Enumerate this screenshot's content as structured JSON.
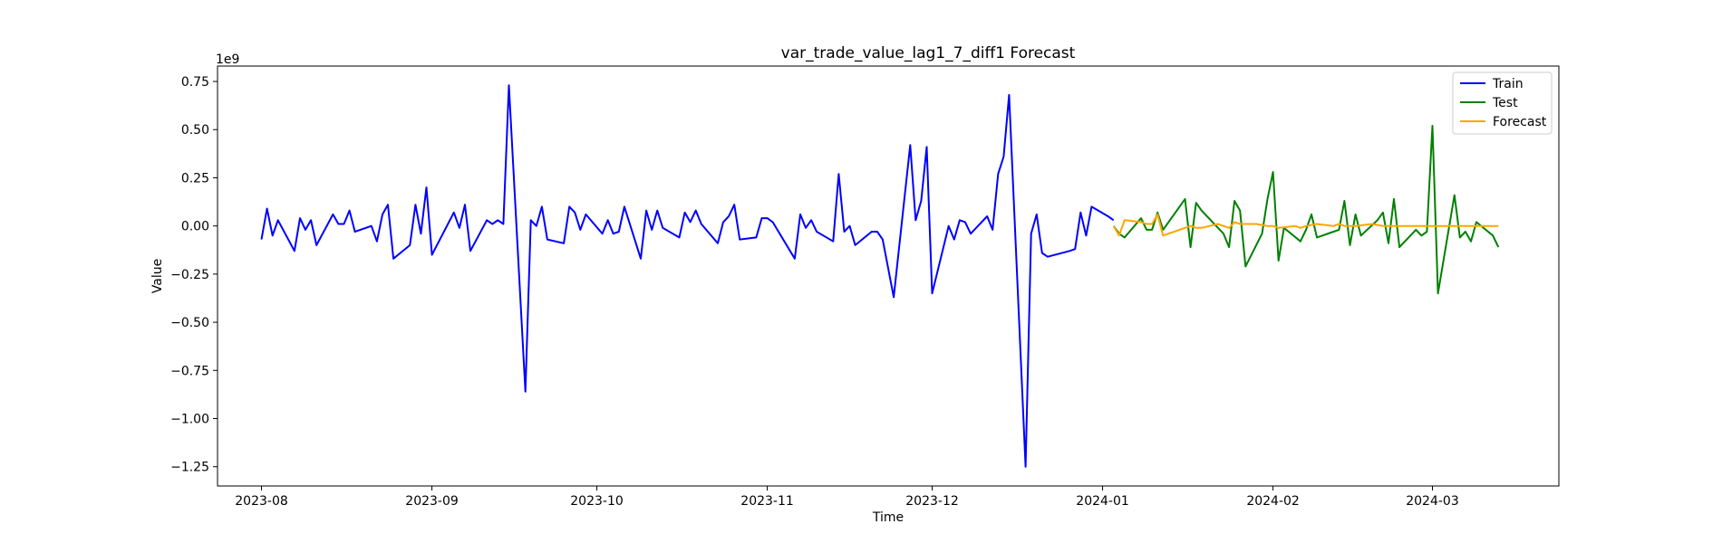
{
  "chart_data": {
    "type": "line",
    "title": "var_trade_value_lag1_7_diff1 Forecast",
    "xlabel": "Time",
    "ylabel": "Value",
    "y_offset_label": "1e9",
    "xlim": [
      "2023-07-24",
      "2024-03-24"
    ],
    "ylim": [
      -1.35,
      0.83
    ],
    "x_ticks": [
      "2023-08-01",
      "2023-09-01",
      "2023-10-01",
      "2023-11-01",
      "2023-12-01",
      "2024-01-01",
      "2024-02-01",
      "2024-03-01"
    ],
    "x_tick_labels": [
      "2023-08",
      "2023-09",
      "2023-10",
      "2023-11",
      "2023-12",
      "2024-01",
      "2024-02",
      "2024-03"
    ],
    "y_ticks": [
      0.75,
      0.5,
      0.25,
      0.0,
      -0.25,
      -0.5,
      -0.75,
      -1.0,
      -1.25
    ],
    "y_tick_labels": [
      "0.75",
      "0.50",
      "0.25",
      "0.00",
      "−0.25",
      "−0.50",
      "−0.75",
      "−1.00",
      "−1.25"
    ],
    "legend_position": "top-right",
    "grid": false,
    "series": [
      {
        "name": "Train",
        "color": "#0000ff",
        "points": [
          [
            "2023-08-01",
            -0.07
          ],
          [
            "2023-08-02",
            0.09
          ],
          [
            "2023-08-03",
            -0.05
          ],
          [
            "2023-08-04",
            0.03
          ],
          [
            "2023-08-07",
            -0.13
          ],
          [
            "2023-08-08",
            0.04
          ],
          [
            "2023-08-09",
            -0.02
          ],
          [
            "2023-08-10",
            0.03
          ],
          [
            "2023-08-11",
            -0.1
          ],
          [
            "2023-08-14",
            0.06
          ],
          [
            "2023-08-15",
            0.01
          ],
          [
            "2023-08-16",
            0.01
          ],
          [
            "2023-08-17",
            0.08
          ],
          [
            "2023-08-18",
            -0.03
          ],
          [
            "2023-08-21",
            0.0
          ],
          [
            "2023-08-22",
            -0.08
          ],
          [
            "2023-08-23",
            0.06
          ],
          [
            "2023-08-24",
            0.11
          ],
          [
            "2023-08-25",
            -0.17
          ],
          [
            "2023-08-28",
            -0.1
          ],
          [
            "2023-08-29",
            0.11
          ],
          [
            "2023-08-30",
            -0.04
          ],
          [
            "2023-08-31",
            0.2
          ],
          [
            "2023-09-01",
            -0.15
          ],
          [
            "2023-09-05",
            0.07
          ],
          [
            "2023-09-06",
            -0.01
          ],
          [
            "2023-09-07",
            0.11
          ],
          [
            "2023-09-08",
            -0.13
          ],
          [
            "2023-09-11",
            0.03
          ],
          [
            "2023-09-12",
            0.01
          ],
          [
            "2023-09-13",
            0.03
          ],
          [
            "2023-09-14",
            0.01
          ],
          [
            "2023-09-15",
            0.73
          ],
          [
            "2023-09-18",
            -0.86
          ],
          [
            "2023-09-19",
            0.03
          ],
          [
            "2023-09-20",
            0.0
          ],
          [
            "2023-09-21",
            0.1
          ],
          [
            "2023-09-22",
            -0.07
          ],
          [
            "2023-09-25",
            -0.09
          ],
          [
            "2023-09-26",
            0.1
          ],
          [
            "2023-09-27",
            0.07
          ],
          [
            "2023-09-28",
            -0.02
          ],
          [
            "2023-09-29",
            0.06
          ],
          [
            "2023-10-02",
            -0.04
          ],
          [
            "2023-10-03",
            0.03
          ],
          [
            "2023-10-04",
            -0.04
          ],
          [
            "2023-10-05",
            -0.03
          ],
          [
            "2023-10-06",
            0.1
          ],
          [
            "2023-10-09",
            -0.17
          ],
          [
            "2023-10-10",
            0.08
          ],
          [
            "2023-10-11",
            -0.02
          ],
          [
            "2023-10-12",
            0.08
          ],
          [
            "2023-10-13",
            -0.01
          ],
          [
            "2023-10-16",
            -0.06
          ],
          [
            "2023-10-17",
            0.07
          ],
          [
            "2023-10-18",
            0.02
          ],
          [
            "2023-10-19",
            0.08
          ],
          [
            "2023-10-20",
            0.01
          ],
          [
            "2023-10-23",
            -0.09
          ],
          [
            "2023-10-24",
            0.02
          ],
          [
            "2023-10-25",
            0.05
          ],
          [
            "2023-10-26",
            0.11
          ],
          [
            "2023-10-27",
            -0.07
          ],
          [
            "2023-10-30",
            -0.06
          ],
          [
            "2023-10-31",
            0.04
          ],
          [
            "2023-11-01",
            0.04
          ],
          [
            "2023-11-02",
            0.02
          ],
          [
            "2023-11-06",
            -0.17
          ],
          [
            "2023-11-07",
            0.06
          ],
          [
            "2023-11-08",
            -0.01
          ],
          [
            "2023-11-09",
            0.03
          ],
          [
            "2023-11-10",
            -0.03
          ],
          [
            "2023-11-13",
            -0.08
          ],
          [
            "2023-11-14",
            0.27
          ],
          [
            "2023-11-15",
            -0.03
          ],
          [
            "2023-11-16",
            0.0
          ],
          [
            "2023-11-17",
            -0.1
          ],
          [
            "2023-11-20",
            -0.03
          ],
          [
            "2023-11-21",
            -0.03
          ],
          [
            "2023-11-22",
            -0.07
          ],
          [
            "2023-11-24",
            -0.37
          ],
          [
            "2023-11-27",
            0.42
          ],
          [
            "2023-11-28",
            0.03
          ],
          [
            "2023-11-29",
            0.13
          ],
          [
            "2023-11-30",
            0.41
          ],
          [
            "2023-12-01",
            -0.35
          ],
          [
            "2023-12-04",
            0.0
          ],
          [
            "2023-12-05",
            -0.07
          ],
          [
            "2023-12-06",
            0.03
          ],
          [
            "2023-12-07",
            0.02
          ],
          [
            "2023-12-08",
            -0.04
          ],
          [
            "2023-12-11",
            0.05
          ],
          [
            "2023-12-12",
            -0.02
          ],
          [
            "2023-12-13",
            0.27
          ],
          [
            "2023-12-14",
            0.36
          ],
          [
            "2023-12-15",
            0.68
          ],
          [
            "2023-12-18",
            -1.25
          ],
          [
            "2023-12-19",
            -0.04
          ],
          [
            "2023-12-20",
            0.06
          ],
          [
            "2023-12-21",
            -0.14
          ],
          [
            "2023-12-22",
            -0.16
          ],
          [
            "2023-12-26",
            -0.13
          ],
          [
            "2023-12-27",
            -0.12
          ],
          [
            "2023-12-28",
            0.07
          ],
          [
            "2023-12-29",
            -0.05
          ],
          [
            "2023-12-30",
            0.1
          ],
          [
            "2024-01-02",
            0.05
          ],
          [
            "2024-01-03",
            0.03
          ]
        ]
      },
      {
        "name": "Test",
        "color": "#008000",
        "points": [
          [
            "2024-01-03",
            0.0
          ],
          [
            "2024-01-04",
            -0.04
          ],
          [
            "2024-01-05",
            -0.06
          ],
          [
            "2024-01-08",
            0.04
          ],
          [
            "2024-01-09",
            -0.02
          ],
          [
            "2024-01-10",
            -0.02
          ],
          [
            "2024-01-11",
            0.07
          ],
          [
            "2024-01-12",
            -0.02
          ],
          [
            "2024-01-16",
            0.14
          ],
          [
            "2024-01-17",
            -0.11
          ],
          [
            "2024-01-18",
            0.12
          ],
          [
            "2024-01-19",
            0.08
          ],
          [
            "2024-01-22",
            -0.01
          ],
          [
            "2024-01-23",
            -0.04
          ],
          [
            "2024-01-24",
            -0.11
          ],
          [
            "2024-01-25",
            0.13
          ],
          [
            "2024-01-26",
            0.08
          ],
          [
            "2024-01-27",
            -0.21
          ],
          [
            "2024-01-30",
            -0.04
          ],
          [
            "2024-01-31",
            0.14
          ],
          [
            "2024-02-01",
            0.28
          ],
          [
            "2024-02-02",
            -0.18
          ],
          [
            "2024-02-03",
            -0.01
          ],
          [
            "2024-02-06",
            -0.08
          ],
          [
            "2024-02-07",
            -0.02
          ],
          [
            "2024-02-08",
            0.06
          ],
          [
            "2024-02-09",
            -0.06
          ],
          [
            "2024-02-12",
            -0.03
          ],
          [
            "2024-02-13",
            -0.02
          ],
          [
            "2024-02-14",
            0.13
          ],
          [
            "2024-02-15",
            -0.1
          ],
          [
            "2024-02-16",
            0.06
          ],
          [
            "2024-02-17",
            -0.05
          ],
          [
            "2024-02-20",
            0.03
          ],
          [
            "2024-02-21",
            0.07
          ],
          [
            "2024-02-22",
            -0.09
          ],
          [
            "2024-02-23",
            0.14
          ],
          [
            "2024-02-24",
            -0.11
          ],
          [
            "2024-02-27",
            -0.02
          ],
          [
            "2024-02-28",
            -0.05
          ],
          [
            "2024-02-29",
            -0.03
          ],
          [
            "2024-03-01",
            0.52
          ],
          [
            "2024-03-02",
            -0.35
          ],
          [
            "2024-03-05",
            0.16
          ],
          [
            "2024-03-06",
            -0.06
          ],
          [
            "2024-03-07",
            -0.03
          ],
          [
            "2024-03-08",
            -0.08
          ],
          [
            "2024-03-09",
            0.02
          ],
          [
            "2024-03-12",
            -0.05
          ],
          [
            "2024-03-13",
            -0.11
          ]
        ]
      },
      {
        "name": "Forecast",
        "color": "#ffa500",
        "points": [
          [
            "2024-01-03",
            0.0
          ],
          [
            "2024-01-04",
            -0.05
          ],
          [
            "2024-01-05",
            0.03
          ],
          [
            "2024-01-08",
            0.02
          ],
          [
            "2024-01-09",
            0.01
          ],
          [
            "2024-01-10",
            0.01
          ],
          [
            "2024-01-11",
            0.06
          ],
          [
            "2024-01-12",
            -0.05
          ],
          [
            "2024-01-16",
            -0.01
          ],
          [
            "2024-01-17",
            0.0
          ],
          [
            "2024-01-18",
            -0.01
          ],
          [
            "2024-01-19",
            -0.01
          ],
          [
            "2024-01-22",
            0.01
          ],
          [
            "2024-01-23",
            0.0
          ],
          [
            "2024-01-24",
            -0.01
          ],
          [
            "2024-01-25",
            0.02
          ],
          [
            "2024-01-26",
            0.01
          ],
          [
            "2024-01-29",
            0.01
          ],
          [
            "2024-01-31",
            0.0
          ],
          [
            "2024-02-01",
            0.0
          ],
          [
            "2024-02-02",
            -0.01
          ],
          [
            "2024-02-05",
            0.0
          ],
          [
            "2024-02-06",
            -0.01
          ],
          [
            "2024-02-07",
            0.0
          ],
          [
            "2024-02-09",
            0.01
          ],
          [
            "2024-02-12",
            0.0
          ],
          [
            "2024-02-13",
            0.01
          ],
          [
            "2024-02-14",
            0.0
          ],
          [
            "2024-02-16",
            0.0
          ],
          [
            "2024-02-19",
            0.01
          ],
          [
            "2024-02-21",
            0.0
          ],
          [
            "2024-02-23",
            0.0
          ],
          [
            "2024-02-26",
            0.0
          ],
          [
            "2024-02-28",
            0.0
          ],
          [
            "2024-03-01",
            0.0
          ],
          [
            "2024-03-04",
            0.0
          ],
          [
            "2024-03-06",
            0.0
          ],
          [
            "2024-03-08",
            0.0
          ],
          [
            "2024-03-11",
            0.0
          ],
          [
            "2024-03-13",
            0.0
          ]
        ]
      }
    ]
  }
}
